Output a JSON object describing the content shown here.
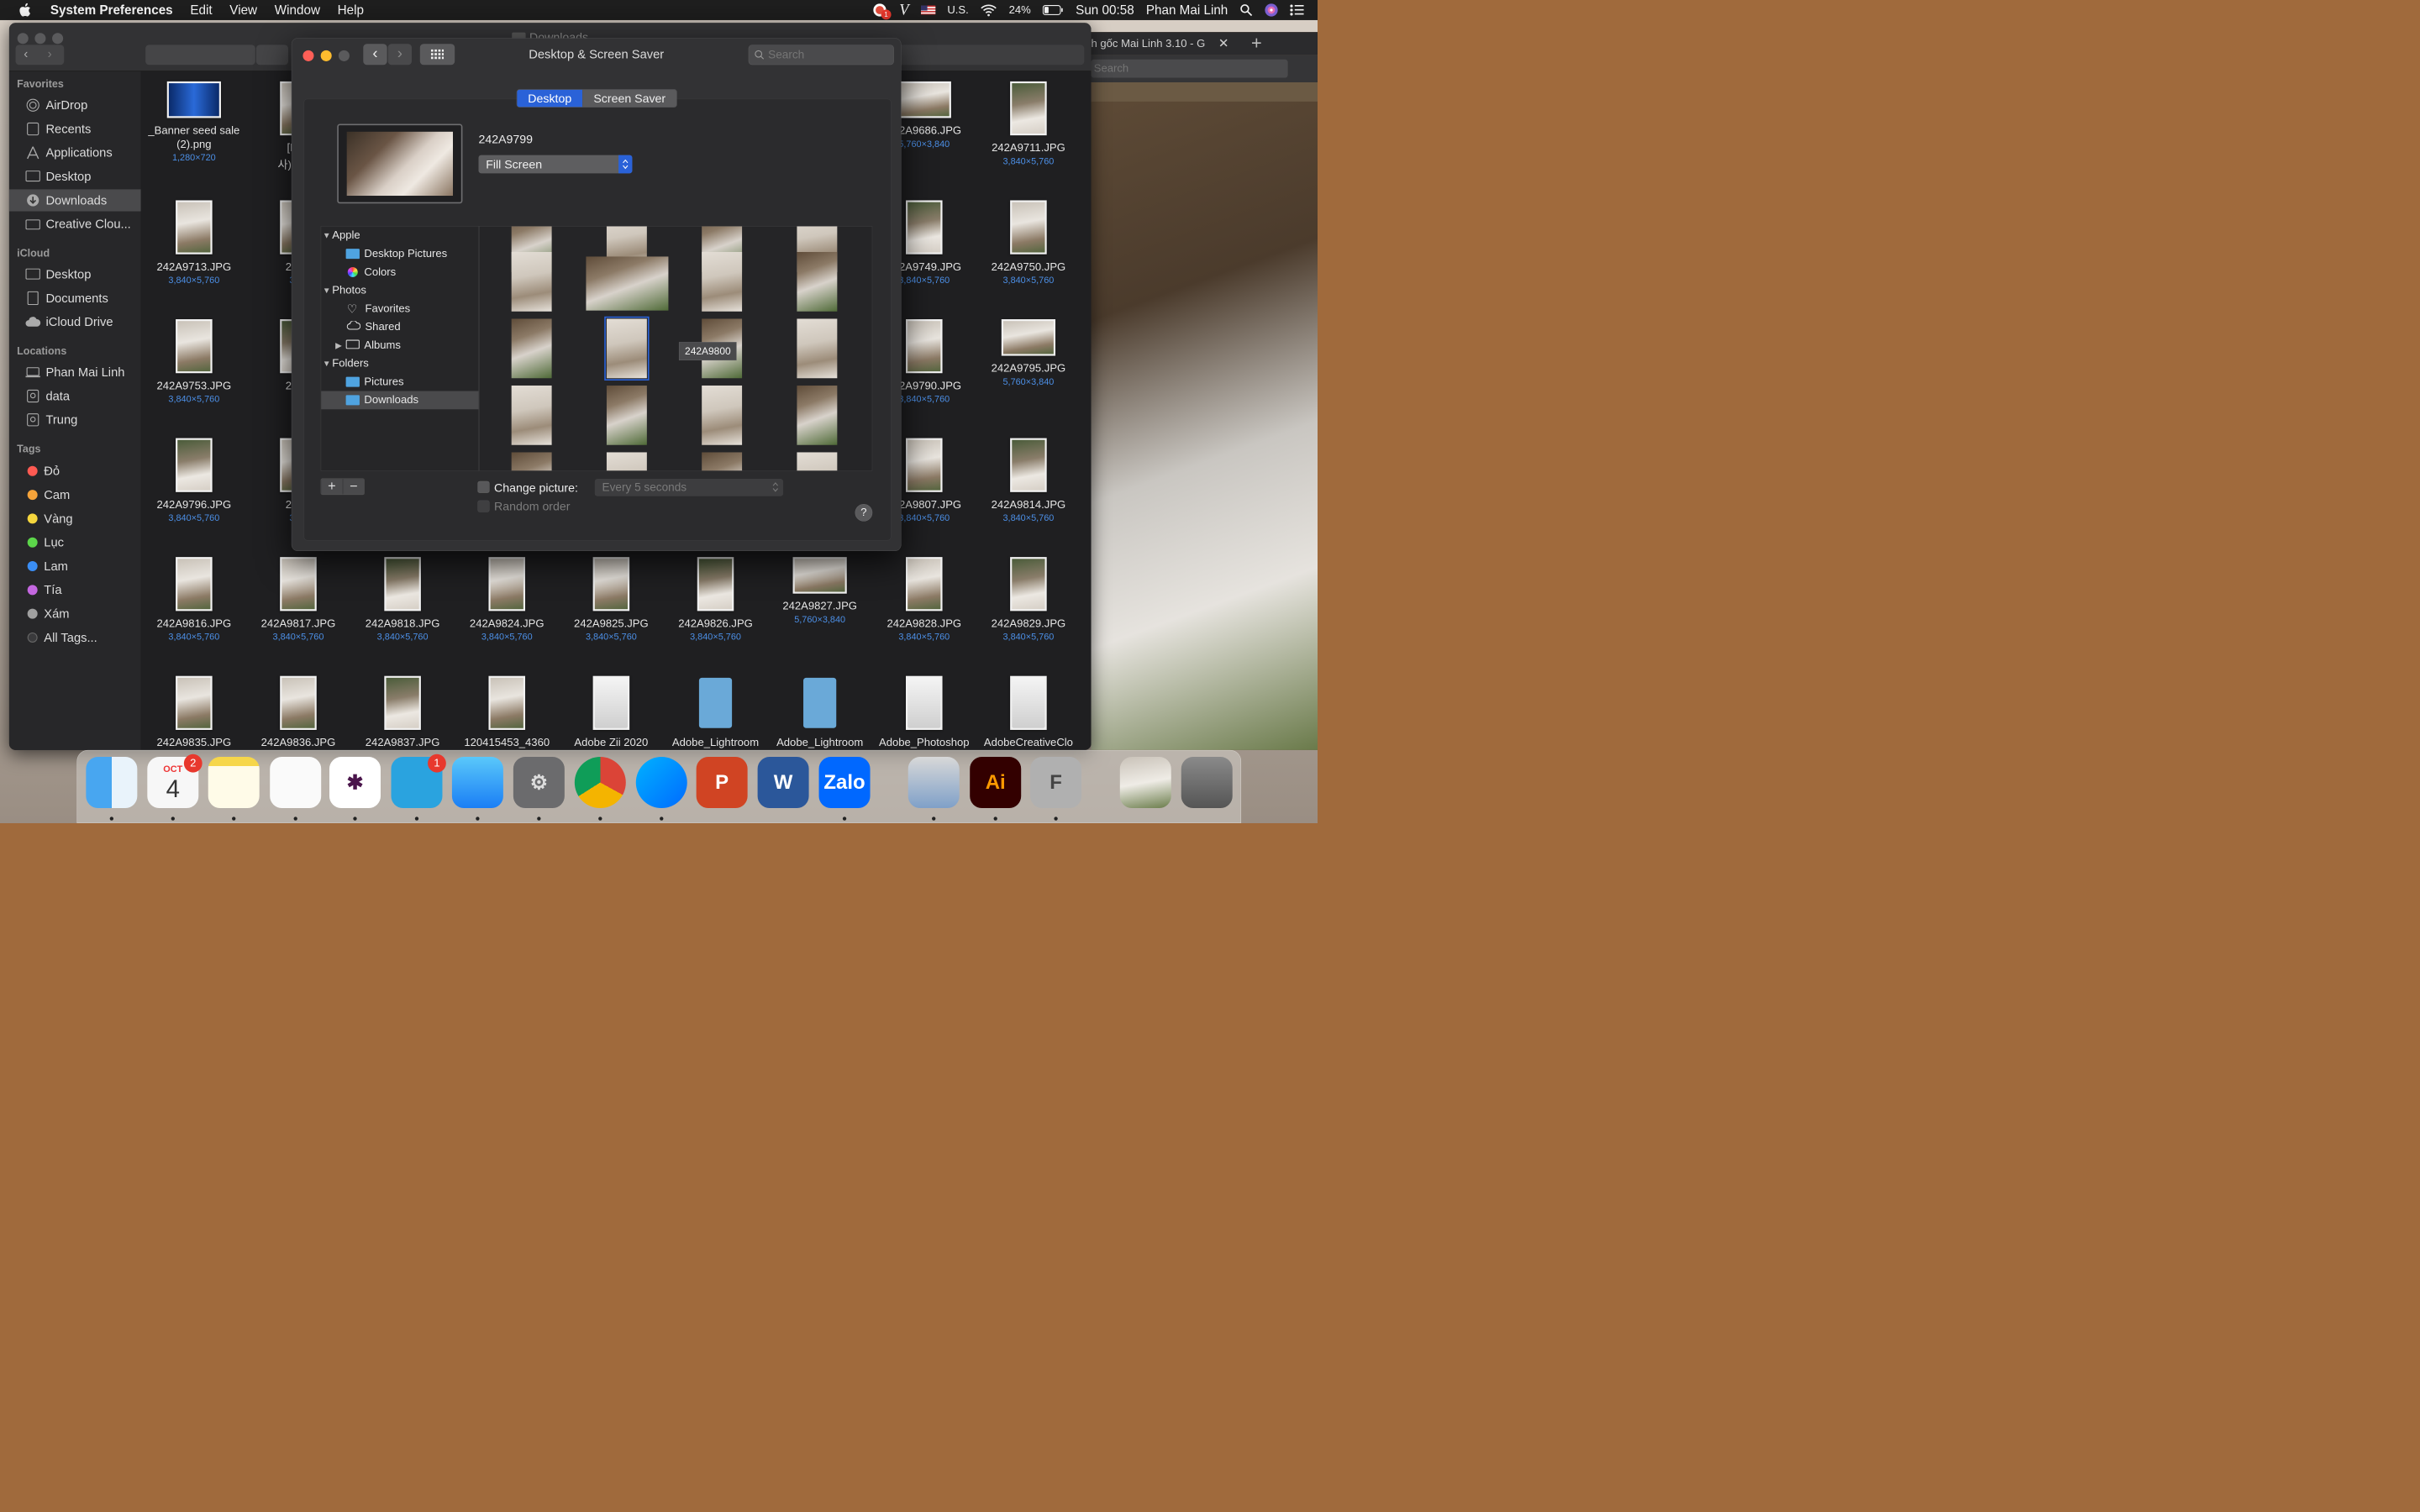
{
  "menubar": {
    "app": "System Preferences",
    "menus": [
      "Edit",
      "View",
      "Window",
      "Help"
    ],
    "notification_count": "1",
    "input_source": "U.S.",
    "battery": "24%",
    "clock": "Sun 00:58",
    "user": "Phan Mai Linh"
  },
  "finder": {
    "title": "Downloads",
    "sidebar": {
      "favorites_header": "Favorites",
      "favorites": [
        "AirDrop",
        "Recents",
        "Applications",
        "Desktop",
        "Downloads",
        "Creative Clou..."
      ],
      "icloud_header": "iCloud",
      "icloud": [
        "Desktop",
        "Documents",
        "iCloud Drive"
      ],
      "locations_header": "Locations",
      "locations": [
        "Phan Mai Linh",
        "data",
        "Trung"
      ],
      "tags_header": "Tags",
      "tags": [
        {
          "name": "Đỏ",
          "color": "#ff5a52"
        },
        {
          "name": "Cam",
          "color": "#f5a33a"
        },
        {
          "name": "Vàng",
          "color": "#f5d63d"
        },
        {
          "name": "Lục",
          "color": "#5cd64a"
        },
        {
          "name": "Lam",
          "color": "#3a8ef5"
        },
        {
          "name": "Tía",
          "color": "#c467e0"
        },
        {
          "name": "Xám",
          "color": "#a0a0a0"
        },
        {
          "name": "All Tags...",
          "color": "#3a3a3c"
        }
      ]
    },
    "files": [
      {
        "name": "_Banner seed sale",
        "name2": "(2).png",
        "dims": "1,280×720"
      },
      {
        "name": "[MV]",
        "name2": "사) _ Ma",
        "dims": ""
      },
      {
        "name": "242A9686.JPG",
        "dims": "5,760×3,840"
      },
      {
        "name": "242A9711.JPG",
        "dims": "3,840×5,760"
      },
      {
        "name": "242A9713.JPG",
        "dims": "3,840×5,760"
      },
      {
        "name": "242A",
        "dims": "3,84"
      },
      {
        "name": "242A9749.JPG",
        "dims": "3,840×5,760"
      },
      {
        "name": "242A9750.JPG",
        "dims": "3,840×5,760"
      },
      {
        "name": "242A9753.JPG",
        "dims": "3,840×5,760"
      },
      {
        "name": "242A",
        "dims": ""
      },
      {
        "name": "242A9790.JPG",
        "dims": "3,840×5,760"
      },
      {
        "name": "242A9795.JPG",
        "dims": "5,760×3,840"
      },
      {
        "name": "242A9796.JPG",
        "dims": "3,840×5,760"
      },
      {
        "name": "242A",
        "dims": "3,84"
      },
      {
        "name": "242A9807.JPG",
        "dims": "3,840×5,760"
      },
      {
        "name": "242A9814.JPG",
        "dims": "3,840×5,760"
      },
      {
        "name": "242A9816.JPG",
        "dims": "3,840×5,760"
      },
      {
        "name": "242A9817.JPG",
        "dims": "3,840×5,760"
      },
      {
        "name": "242A9818.JPG",
        "dims": "3,840×5,760"
      },
      {
        "name": "242A9824.JPG",
        "dims": "3,840×5,760"
      },
      {
        "name": "242A9825.JPG",
        "dims": "3,840×5,760"
      },
      {
        "name": "242A9826.JPG",
        "dims": "3,840×5,760"
      },
      {
        "name": "242A9827.JPG",
        "dims": "5,760×3,840"
      },
      {
        "name": "242A9828.JPG",
        "dims": "3,840×5,760"
      },
      {
        "name": "242A9829.JPG",
        "dims": "3,840×5,760"
      },
      {
        "name": "242A9835.JPG"
      },
      {
        "name": "242A9836.JPG"
      },
      {
        "name": "242A9837.JPG"
      },
      {
        "name": "120415453_4360"
      },
      {
        "name": "Adobe Zii 2020"
      },
      {
        "name": "Adobe_Lightroom"
      },
      {
        "name": "Adobe_Lightroom"
      },
      {
        "name": "Adobe_Photoshop"
      },
      {
        "name": "AdobeCreativeClo"
      }
    ]
  },
  "chrome": {
    "tab_title": "h gốc Mai Linh 3.10 - G",
    "search_placeholder": "Search"
  },
  "prefs": {
    "title": "Desktop & Screen Saver",
    "search_placeholder": "Search",
    "tabs": [
      "Desktop",
      "Screen Saver"
    ],
    "picture_name": "242A9799",
    "fit_mode": "Fill Screen",
    "sources": {
      "apple": "Apple",
      "desktop_pictures": "Desktop Pictures",
      "colors": "Colors",
      "photos": "Photos",
      "favorites": "Favorites",
      "shared": "Shared",
      "albums": "Albums",
      "folders": "Folders",
      "pictures": "Pictures",
      "downloads": "Downloads"
    },
    "tooltip": "242A9800",
    "add": "+",
    "remove": "−",
    "change_picture_label": "Change picture:",
    "change_picture_checked": false,
    "interval": "Every 5 seconds",
    "random_order_label": "Random order",
    "help": "?"
  },
  "dock": {
    "calendar_month": "OCT",
    "calendar_day": "4",
    "calendar_badge": "2",
    "telegram_badge": "1",
    "items": [
      "Finder",
      "Calendar",
      "Notes",
      "Reminders",
      "Slack",
      "Telegram",
      "Messages",
      "System Preferences",
      "Chrome",
      "Messenger",
      "PowerPoint",
      "Word",
      "Zalo",
      "Preview",
      "Illustrator",
      "Font Book",
      "Downloads",
      "Trash"
    ]
  }
}
